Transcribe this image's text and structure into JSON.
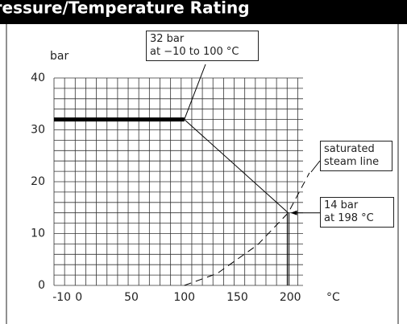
{
  "header": {
    "title": "Pressure/Temperature Rating"
  },
  "chart_data": {
    "type": "line",
    "ylabel": "bar",
    "xlabel": "°C",
    "xlim": [
      -23,
      212
    ],
    "ylim": [
      0,
      40
    ],
    "xticks": [
      -10,
      0,
      50,
      100,
      150,
      200
    ],
    "yticks": [
      0,
      10,
      20,
      30,
      40
    ],
    "grid": true,
    "series": [
      {
        "x": [
          -23,
          100
        ],
        "values": [
          32,
          32
        ],
        "color": "#000000",
        "width": 5
      },
      {
        "x": [
          100,
          198
        ],
        "values": [
          32,
          14
        ],
        "color": "#000000",
        "width": 1
      },
      {
        "name": "saturated steam line",
        "x": [
          100,
          131,
          169,
          198,
          218
        ],
        "values": [
          0,
          2.3,
          7.8,
          14,
          21.7
        ],
        "color": "#000000",
        "width": 1,
        "dashed": true
      }
    ],
    "annotations": [
      "32 bar\nat −10 to 100 °C",
      "14 bar\nat 198 °C"
    ]
  }
}
